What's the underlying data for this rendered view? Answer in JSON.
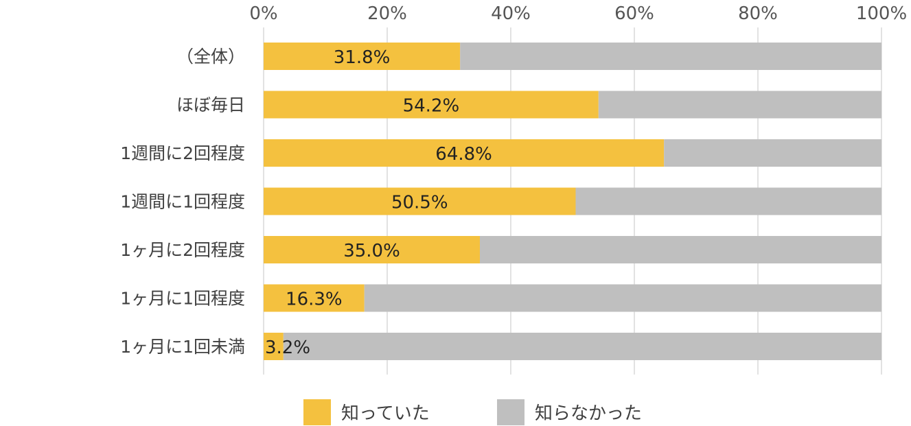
{
  "chart_data": {
    "type": "bar",
    "orientation": "horizontal",
    "stacked": true,
    "percent_stacked": true,
    "categories": [
      "（全体）",
      "ほぼ毎日",
      "1週間に2回程度",
      "1週間に1回程度",
      "1ヶ月に2回程度",
      "1ヶ月に1回程度",
      "1ヶ月に1回未満"
    ],
    "series": [
      {
        "name": "知っていた",
        "color": "#F4C13F",
        "values": [
          31.8,
          54.2,
          64.8,
          50.5,
          35.0,
          16.3,
          3.2
        ],
        "labels": [
          "31.8%",
          "54.2%",
          "64.8%",
          "50.5%",
          "35.0%",
          "16.3%",
          "3.2%"
        ]
      },
      {
        "name": "知らなかった",
        "color": "#BFBFBF",
        "values": [
          68.2,
          45.8,
          35.2,
          49.5,
          65.0,
          83.7,
          96.8
        ]
      }
    ],
    "xlim": [
      0,
      100
    ],
    "x_ticks": [
      "0%",
      "20%",
      "40%",
      "60%",
      "80%",
      "100%"
    ],
    "x_axis_position": "top",
    "grid": true,
    "legend": "bottom"
  }
}
